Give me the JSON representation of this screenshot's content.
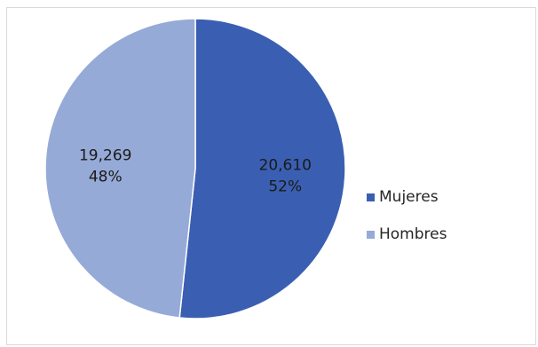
{
  "chart_data": {
    "type": "pie",
    "slices": [
      {
        "label": "Mujeres",
        "value": 20610,
        "percent": "52%",
        "value_text": "20,610",
        "color": "#3a5fb2"
      },
      {
        "label": "Hombres",
        "value": 19269,
        "percent": "48%",
        "value_text": "19,269",
        "color": "#96aad7"
      }
    ],
    "legend_position": "right",
    "start_angle_deg": 0,
    "direction": "clockwise"
  }
}
